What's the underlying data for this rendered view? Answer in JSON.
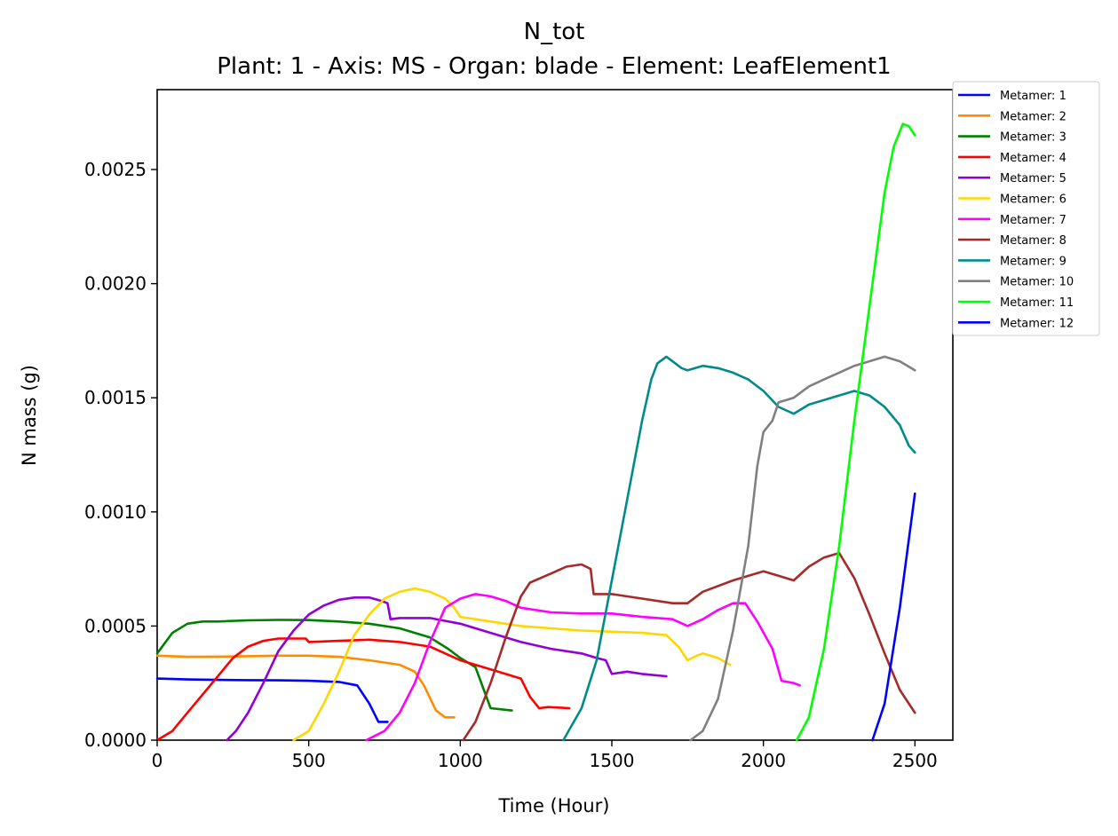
{
  "chart_data": {
    "type": "line",
    "title": "N_tot",
    "subtitle": "Plant: 1 - Axis: MS - Organ: blade - Element: LeafElement1",
    "xlabel": "Time (Hour)",
    "ylabel": "N mass (g)",
    "xlim": [
      0,
      2625
    ],
    "ylim": [
      0,
      0.00285
    ],
    "xticks": [
      0,
      500,
      1000,
      1500,
      2000,
      2500
    ],
    "xtick_labels": [
      "0",
      "500",
      "1000",
      "1500",
      "2000",
      "2500"
    ],
    "yticks": [
      0,
      0.0005,
      0.001,
      0.0015,
      0.002,
      0.0025
    ],
    "ytick_labels": [
      "0.0000",
      "0.0005",
      "0.0010",
      "0.0015",
      "0.0020",
      "0.0025"
    ],
    "grid": false,
    "legend_position": "outside-top-right",
    "series": [
      {
        "name": "Metamer: 1",
        "color": "#0000ff",
        "x": [
          0,
          50,
          100,
          200,
          300,
          400,
          500,
          600,
          660,
          700,
          730,
          760
        ],
        "y": [
          0.00027,
          0.000268,
          0.000266,
          0.000264,
          0.000263,
          0.000262,
          0.00026,
          0.000255,
          0.00024,
          0.00016,
          8e-05,
          8e-05
        ]
      },
      {
        "name": "Metamer: 2",
        "color": "#ff8c00",
        "x": [
          0,
          50,
          100,
          200,
          300,
          400,
          500,
          600,
          700,
          800,
          850,
          880,
          920,
          950,
          980
        ],
        "y": [
          0.00037,
          0.000368,
          0.000365,
          0.000366,
          0.000368,
          0.00037,
          0.00037,
          0.000365,
          0.00035,
          0.00033,
          0.0003,
          0.00024,
          0.00013,
          0.0001,
          0.0001
        ]
      },
      {
        "name": "Metamer: 3",
        "color": "#008000",
        "x": [
          0,
          50,
          100,
          150,
          200,
          300,
          400,
          500,
          600,
          700,
          800,
          850,
          900,
          960,
          1000,
          1050,
          1100,
          1170
        ],
        "y": [
          0.00038,
          0.00047,
          0.00051,
          0.00052,
          0.00052,
          0.000525,
          0.000527,
          0.000526,
          0.00052,
          0.00051,
          0.00049,
          0.00047,
          0.00045,
          0.0004,
          0.00036,
          0.00032,
          0.00014,
          0.00013
        ]
      },
      {
        "name": "Metamer: 4",
        "color": "#ff0000",
        "x": [
          0,
          50,
          100,
          150,
          200,
          250,
          300,
          350,
          400,
          490,
          500,
          600,
          700,
          800,
          900,
          1000,
          1100,
          1200,
          1230,
          1260,
          1290,
          1360
        ],
        "y": [
          0,
          4e-05,
          0.00012,
          0.0002,
          0.00028,
          0.00036,
          0.00041,
          0.000435,
          0.000445,
          0.000445,
          0.00043,
          0.000435,
          0.00044,
          0.00043,
          0.00041,
          0.00035,
          0.00031,
          0.00027,
          0.00019,
          0.00014,
          0.000145,
          0.00014
        ]
      },
      {
        "name": "Metamer: 5",
        "color": "#9400d3",
        "x": [
          230,
          260,
          300,
          350,
          400,
          450,
          500,
          550,
          600,
          650,
          700,
          740,
          760,
          770,
          800,
          900,
          1000,
          1100,
          1200,
          1300,
          1400,
          1450,
          1480,
          1500,
          1550,
          1600,
          1680
        ],
        "y": [
          0,
          4e-05,
          0.00012,
          0.00025,
          0.00039,
          0.00048,
          0.00055,
          0.00059,
          0.000615,
          0.000625,
          0.000625,
          0.00061,
          0.0006,
          0.00053,
          0.000535,
          0.000535,
          0.00051,
          0.00047,
          0.00043,
          0.0004,
          0.00038,
          0.00036,
          0.00035,
          0.00029,
          0.0003,
          0.00029,
          0.00028
        ]
      },
      {
        "name": "Metamer: 6",
        "color": "#ffd700",
        "x": [
          450,
          500,
          550,
          600,
          650,
          700,
          750,
          800,
          850,
          900,
          950,
          980,
          1000,
          1100,
          1200,
          1300,
          1400,
          1500,
          1600,
          1680,
          1720,
          1750,
          1780,
          1800,
          1850,
          1890
        ],
        "y": [
          0,
          4e-05,
          0.00016,
          0.0003,
          0.00046,
          0.00055,
          0.00062,
          0.00065,
          0.000665,
          0.00065,
          0.00062,
          0.00058,
          0.00054,
          0.00052,
          0.0005,
          0.00049,
          0.00048,
          0.000475,
          0.00047,
          0.00046,
          0.00041,
          0.00035,
          0.00037,
          0.00038,
          0.00036,
          0.00033
        ]
      },
      {
        "name": "Metamer: 7",
        "color": "#ff00ff",
        "x": [
          690,
          750,
          800,
          850,
          900,
          950,
          1000,
          1050,
          1100,
          1150,
          1200,
          1300,
          1400,
          1500,
          1600,
          1700,
          1750,
          1800,
          1850,
          1900,
          1940,
          1980,
          2030,
          2060,
          2100,
          2120
        ],
        "y": [
          0,
          4e-05,
          0.00012,
          0.00025,
          0.00043,
          0.00058,
          0.00062,
          0.00064,
          0.00063,
          0.00061,
          0.00058,
          0.00056,
          0.000555,
          0.000555,
          0.00054,
          0.00053,
          0.0005,
          0.00053,
          0.00057,
          0.0006,
          0.0006,
          0.00052,
          0.0004,
          0.00026,
          0.00025,
          0.00024
        ]
      },
      {
        "name": "Metamer: 8",
        "color": "#a52a2a",
        "x": [
          1010,
          1050,
          1100,
          1150,
          1200,
          1230,
          1300,
          1350,
          1400,
          1430,
          1440,
          1500,
          1600,
          1700,
          1750,
          1800,
          1900,
          2000,
          2050,
          2100,
          2150,
          2200,
          2250,
          2300,
          2350,
          2400,
          2450,
          2500
        ],
        "y": [
          0,
          8e-05,
          0.00025,
          0.00045,
          0.00063,
          0.00069,
          0.00073,
          0.00076,
          0.00077,
          0.00075,
          0.00064,
          0.00064,
          0.00062,
          0.0006,
          0.0006,
          0.00065,
          0.0007,
          0.00074,
          0.00072,
          0.0007,
          0.00076,
          0.0008,
          0.00082,
          0.00071,
          0.00055,
          0.00038,
          0.00022,
          0.00012
        ]
      },
      {
        "name": "Metamer: 9",
        "color": "#008b8b",
        "x": [
          1340,
          1400,
          1450,
          1500,
          1550,
          1600,
          1630,
          1650,
          1680,
          1700,
          1730,
          1750,
          1800,
          1850,
          1900,
          1950,
          2000,
          2050,
          2100,
          2150,
          2200,
          2250,
          2300,
          2350,
          2400,
          2450,
          2480,
          2500
        ],
        "y": [
          0,
          0.00014,
          0.00035,
          0.0007,
          0.00105,
          0.0014,
          0.00158,
          0.00165,
          0.00168,
          0.00166,
          0.00163,
          0.00162,
          0.00164,
          0.00163,
          0.00161,
          0.00158,
          0.00153,
          0.00146,
          0.00143,
          0.00147,
          0.00149,
          0.00151,
          0.00153,
          0.00151,
          0.00146,
          0.00138,
          0.00129,
          0.00126
        ]
      },
      {
        "name": "Metamer: 10",
        "color": "#808080",
        "x": [
          1760,
          1800,
          1850,
          1900,
          1950,
          1980,
          2000,
          2030,
          2050,
          2100,
          2150,
          2200,
          2250,
          2300,
          2350,
          2400,
          2450,
          2500
        ],
        "y": [
          0,
          4e-05,
          0.00018,
          0.00048,
          0.00085,
          0.0012,
          0.00135,
          0.0014,
          0.00148,
          0.0015,
          0.00155,
          0.00158,
          0.00161,
          0.00164,
          0.00166,
          0.00168,
          0.00166,
          0.00162
        ]
      },
      {
        "name": "Metamer: 11",
        "color": "#00ff00",
        "x": [
          2110,
          2150,
          2200,
          2250,
          2300,
          2350,
          2400,
          2430,
          2460,
          2480,
          2500
        ],
        "y": [
          0,
          0.0001,
          0.0004,
          0.00085,
          0.0014,
          0.0019,
          0.0024,
          0.0026,
          0.0027,
          0.00269,
          0.00265
        ]
      },
      {
        "name": "Metamer: 12",
        "color": "#0000ff",
        "x": [
          2360,
          2400,
          2450,
          2500
        ],
        "y": [
          0,
          0.00016,
          0.00058,
          0.00108
        ]
      }
    ]
  }
}
